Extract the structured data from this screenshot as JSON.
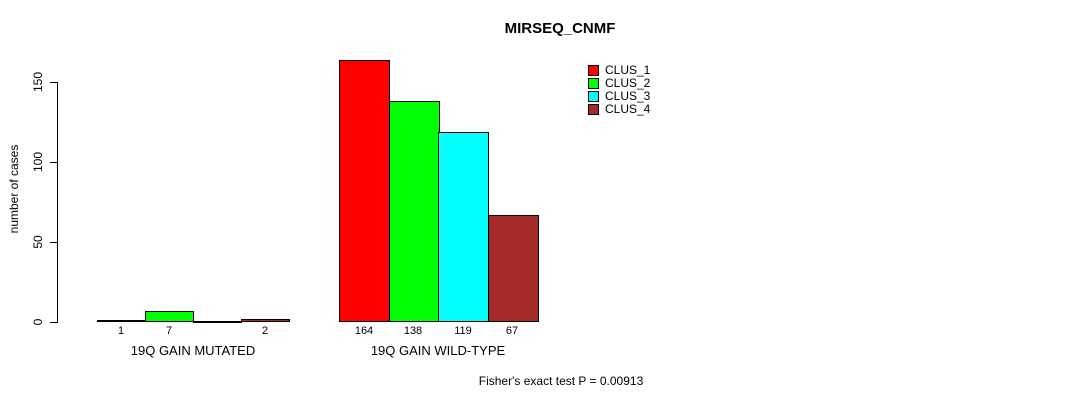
{
  "chart_data": {
    "type": "bar",
    "title": "MIRSEQ_CNMF",
    "xlabel": "",
    "ylabel": "number of cases",
    "categories": [
      "19Q GAIN MUTATED",
      "19Q GAIN WILD-TYPE"
    ],
    "series": [
      {
        "name": "CLUS_1",
        "color": "#ff0000",
        "values": [
          1,
          164
        ]
      },
      {
        "name": "CLUS_2",
        "color": "#00ff00",
        "values": [
          7,
          138
        ]
      },
      {
        "name": "CLUS_3",
        "color": "#00ffff",
        "values": [
          0,
          119
        ]
      },
      {
        "name": "CLUS_4",
        "color": "#a52a2a",
        "values": [
          2,
          67
        ]
      }
    ],
    "bar_labels": [
      [
        "1",
        "7",
        "",
        "2"
      ],
      [
        "164",
        "138",
        "119",
        "67"
      ]
    ],
    "yticks": [
      0,
      50,
      100,
      150
    ],
    "ylim": [
      0,
      164
    ],
    "grid": false,
    "legend_position": "top-right"
  },
  "footer": {
    "text": "Fisher's exact test P = 0.00913"
  }
}
